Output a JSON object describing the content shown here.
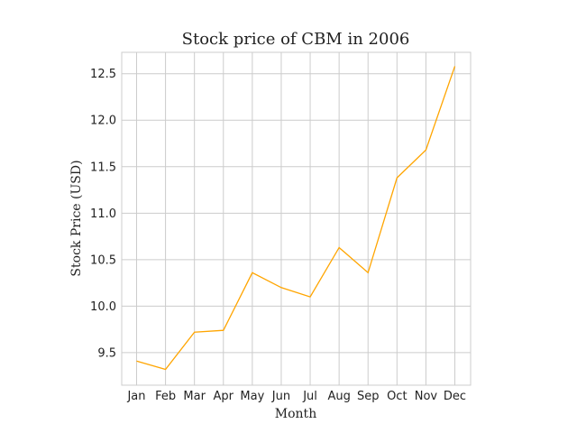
{
  "chart_data": {
    "type": "line",
    "title": "Stock price of CBM in 2006",
    "xlabel": "Month",
    "ylabel": "Stock Price (USD)",
    "categories": [
      "Jan",
      "Feb",
      "Mar",
      "Apr",
      "May",
      "Jun",
      "Jul",
      "Aug",
      "Sep",
      "Oct",
      "Nov",
      "Dec"
    ],
    "series": [
      {
        "values": [
          9.41,
          9.32,
          9.72,
          9.74,
          10.36,
          10.2,
          10.1,
          10.63,
          10.36,
          11.38,
          11.68,
          12.58
        ],
        "color": "#ffa500"
      }
    ],
    "ylim": [
      9.15,
      12.73
    ],
    "yticks": [
      9.5,
      10.0,
      10.5,
      11.0,
      11.5,
      12.0,
      12.5
    ],
    "ytick_labels": [
      "9.5",
      "10.0",
      "10.5",
      "11.0",
      "11.5",
      "12.0",
      "12.5"
    ],
    "grid": true,
    "colors": {
      "line": "#ffa500",
      "grid": "#cccccc",
      "text": "#222222"
    }
  }
}
